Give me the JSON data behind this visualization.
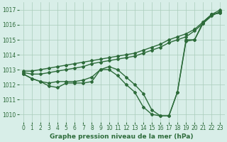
{
  "title": "Graphe pression niveau de la mer (hPa)",
  "background_color": "#d8eee8",
  "grid_color": "#aaccbb",
  "line_color": "#2d6b3a",
  "xlim": [
    -0.5,
    23.5
  ],
  "ylim": [
    1009.5,
    1017.5
  ],
  "yticks": [
    1010,
    1011,
    1012,
    1013,
    1014,
    1015,
    1016,
    1017
  ],
  "xticks": [
    0,
    1,
    2,
    3,
    4,
    5,
    6,
    7,
    8,
    9,
    10,
    11,
    12,
    13,
    14,
    15,
    16,
    17,
    18,
    19,
    20,
    21,
    22,
    23
  ],
  "series": [
    [
      1012.7,
      1012.4,
      1012.2,
      1011.9,
      1011.8,
      1012.1,
      1012.1,
      1012.1,
      1012.2,
      1013.0,
      1013.0,
      1012.6,
      1012.0,
      1011.5,
      1010.5,
      1010.0,
      1009.9,
      1009.9,
      1011.5,
      1015.0,
      1015.0,
      1016.2,
      1016.7,
      1016.8
    ],
    [
      1012.7,
      1012.4,
      1012.2,
      1012.1,
      1012.2,
      1012.2,
      1012.2,
      1012.3,
      1012.5,
      1013.0,
      1013.2,
      1013.0,
      1012.5,
      1012.0,
      1011.4,
      1010.3,
      1009.9,
      1009.9,
      1011.5,
      1014.9,
      1015.0,
      1016.1,
      1016.7,
      1016.8
    ],
    [
      1012.8,
      1012.7,
      1012.7,
      1012.8,
      1012.9,
      1013.0,
      1013.1,
      1013.2,
      1013.4,
      1013.5,
      1013.6,
      1013.7,
      1013.8,
      1013.9,
      1014.1,
      1014.3,
      1014.5,
      1014.8,
      1015.0,
      1015.2,
      1015.6,
      1016.1,
      1016.6,
      1016.9
    ],
    [
      1012.9,
      1012.9,
      1013.0,
      1013.1,
      1013.2,
      1013.3,
      1013.4,
      1013.5,
      1013.6,
      1013.7,
      1013.8,
      1013.9,
      1014.0,
      1014.1,
      1014.3,
      1014.5,
      1014.7,
      1015.0,
      1015.2,
      1015.4,
      1015.7,
      1016.2,
      1016.7,
      1017.0
    ]
  ],
  "marker": "D",
  "markersize": 2.0,
  "linewidth": 1.0,
  "tick_fontsize": 5.5,
  "xlabel_fontsize": 6.5
}
